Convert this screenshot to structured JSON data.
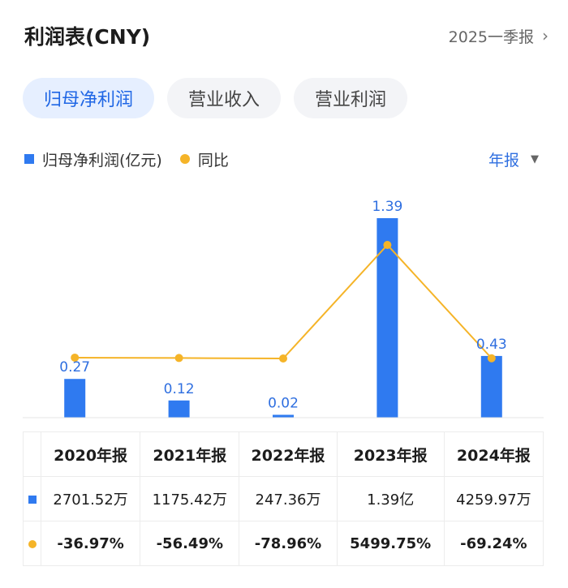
{
  "header": {
    "title": "利润表(CNY)",
    "period": "2025一季报"
  },
  "tabs": [
    {
      "label": "归母净利润",
      "active": true
    },
    {
      "label": "营业收入",
      "active": false
    },
    {
      "label": "营业利润",
      "active": false
    }
  ],
  "legend": {
    "bar": "归母净利润(亿元)",
    "line": "同比",
    "frequency": "年报"
  },
  "colors": {
    "bar": "#2f7af0",
    "line": "#f5b428",
    "positive": "#e0484b",
    "negative": "#2f9a6c"
  },
  "chart_data": {
    "type": "bar",
    "categories": [
      "2020年报",
      "2021年报",
      "2022年报",
      "2023年报",
      "2024年报"
    ],
    "series": [
      {
        "name": "归母净利润(亿元)",
        "type": "bar",
        "values": [
          0.27,
          0.12,
          0.02,
          1.39,
          0.43
        ],
        "labels": [
          "0.27",
          "0.12",
          "0.02",
          "1.39",
          "0.43"
        ]
      },
      {
        "name": "同比",
        "type": "line",
        "values": [
          -36.97,
          -56.49,
          -78.96,
          5499.75,
          -69.24
        ]
      }
    ],
    "grid": false
  },
  "table": {
    "headers": [
      "2020年报",
      "2021年报",
      "2022年报",
      "2023年报",
      "2024年报"
    ],
    "values": [
      "2701.52万",
      "1175.42万",
      "247.36万",
      "1.39亿",
      "4259.97万"
    ],
    "yoy": [
      "-36.97%",
      "-56.49%",
      "-78.96%",
      "5499.75%",
      "-69.24%"
    ]
  }
}
